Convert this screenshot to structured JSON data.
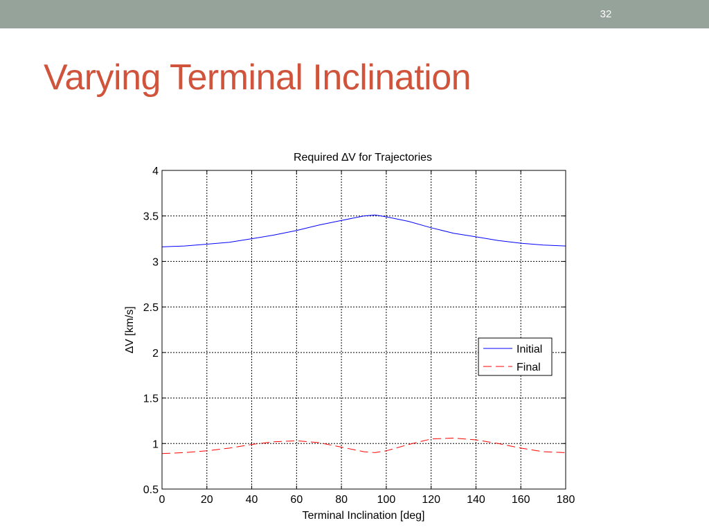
{
  "slide": {
    "page_number": "32",
    "title": "Varying Terminal Inclination",
    "colors": {
      "top_bar": "#95a39a",
      "title": "#d0533b"
    }
  },
  "chart_data": {
    "type": "line",
    "title": "Required ∆V for Trajectories",
    "xlabel": "Terminal Inclination [deg]",
    "ylabel": "∆V [km/s]",
    "xlim": [
      0,
      180
    ],
    "ylim": [
      0.5,
      4
    ],
    "xticks": [
      0,
      20,
      40,
      60,
      80,
      100,
      120,
      140,
      160,
      180
    ],
    "yticks": [
      0.5,
      1,
      1.5,
      2,
      2.5,
      3,
      3.5,
      4
    ],
    "ytick_labels": [
      "0.5",
      "1",
      "1.5",
      "2",
      "2.5",
      "3",
      "3.5",
      "4"
    ],
    "grid": true,
    "legend_position": "right",
    "x": [
      0,
      10,
      20,
      30,
      40,
      50,
      60,
      70,
      80,
      90,
      95,
      100,
      110,
      120,
      130,
      140,
      150,
      160,
      170,
      180
    ],
    "series": [
      {
        "name": "Initial",
        "color": "#0000ff",
        "style": "solid",
        "values": [
          3.16,
          3.17,
          3.19,
          3.21,
          3.25,
          3.29,
          3.34,
          3.4,
          3.45,
          3.5,
          3.51,
          3.49,
          3.44,
          3.37,
          3.31,
          3.27,
          3.23,
          3.2,
          3.18,
          3.17
        ]
      },
      {
        "name": "Final",
        "color": "#ff0000",
        "style": "dashed",
        "values": [
          0.89,
          0.9,
          0.92,
          0.95,
          0.99,
          1.02,
          1.03,
          1.01,
          0.96,
          0.91,
          0.9,
          0.92,
          0.99,
          1.05,
          1.06,
          1.04,
          1.0,
          0.95,
          0.91,
          0.9
        ]
      }
    ]
  }
}
